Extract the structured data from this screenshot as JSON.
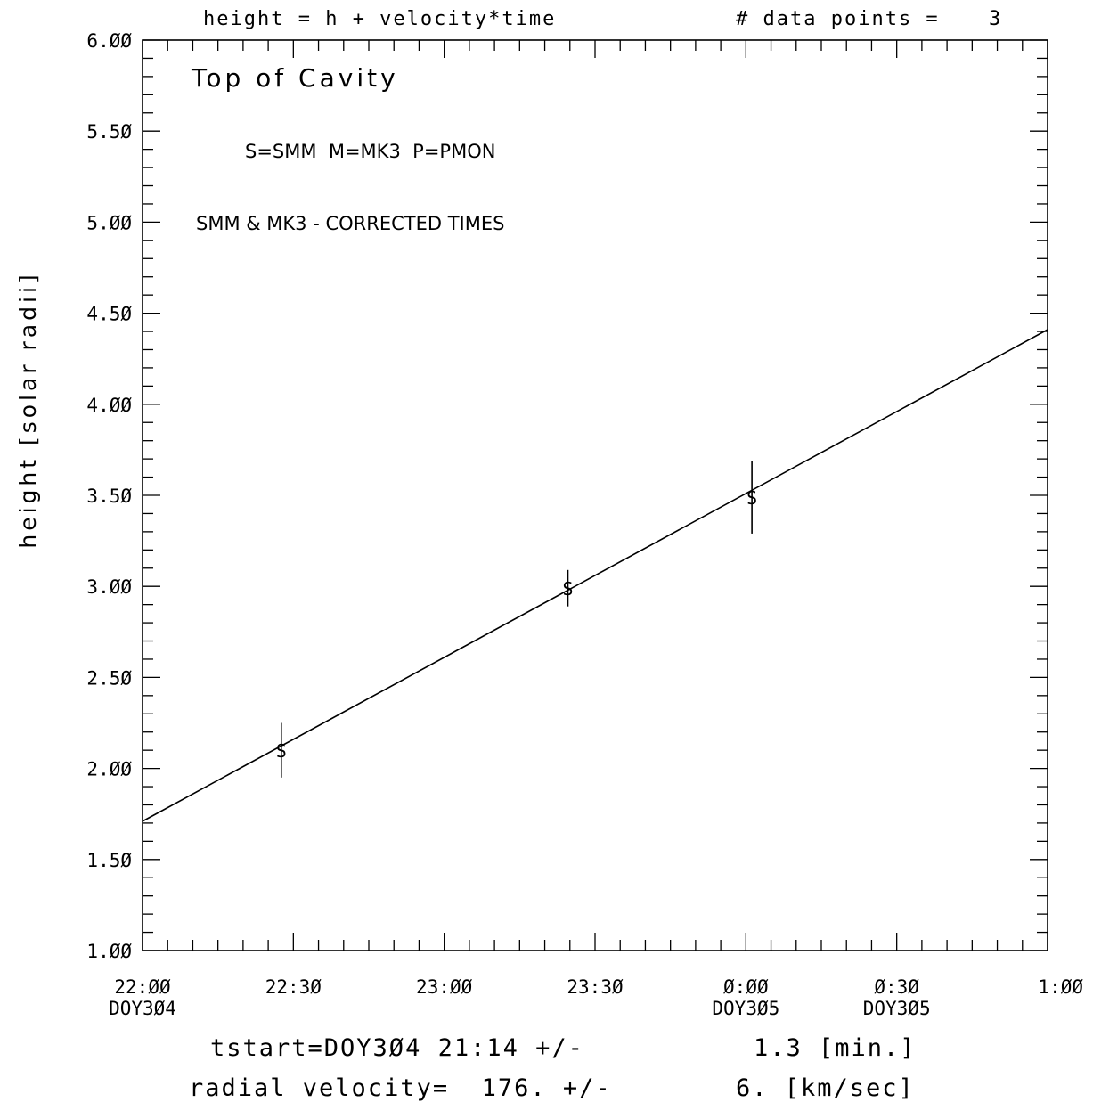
{
  "header": {
    "formula": "height = h + velocity*time",
    "points_label": "# data points =",
    "points_value": "3"
  },
  "chart_data": {
    "type": "scatter",
    "title": "Top of Cavity",
    "ylabel": "height [solar radii]",
    "xlabel": "",
    "ylim": [
      1.0,
      6.0
    ],
    "xlim_hours": [
      22.0,
      25.0
    ],
    "y_ticks": [
      "1.ØØ",
      "1.5Ø",
      "2.ØØ",
      "2.5Ø",
      "3.ØØ",
      "3.5Ø",
      "4.ØØ",
      "4.5Ø",
      "5.ØØ",
      "5.5Ø",
      "6.ØØ"
    ],
    "x_ticks": [
      {
        "time": "22:ØØ",
        "day": "DOY3Ø4"
      },
      {
        "time": "22:3Ø",
        "day": ""
      },
      {
        "time": "23:ØØ",
        "day": ""
      },
      {
        "time": "23:3Ø",
        "day": ""
      },
      {
        "time": "Ø:ØØ",
        "day": "DOY3Ø5"
      },
      {
        "time": "Ø:3Ø",
        "day": "DOY3Ø5"
      },
      {
        "time": "1:ØØ",
        "day": ""
      }
    ],
    "points": [
      {
        "t_hours": 22.46,
        "height": 2.1,
        "err": 0.15,
        "marker": "S"
      },
      {
        "t_hours": 23.41,
        "height": 2.99,
        "err": 0.1,
        "marker": "S"
      },
      {
        "t_hours": 24.02,
        "height": 3.49,
        "err": 0.2,
        "marker": "S"
      }
    ],
    "fit": {
      "start": [
        22.0,
        1.71
      ],
      "end": [
        25.0,
        4.41
      ]
    },
    "annotations": {
      "legend": "S=SMM  M=MK3  P=PMON",
      "note": "SMM & MK3 - CORRECTED TIMES"
    }
  },
  "footer": {
    "tstart_label": "tstart=DOY3Ø4 21:14 +/-",
    "tstart_err": "1.3 [min.]",
    "velocity_label": "radial velocity=  176. +/-",
    "velocity_err": "6. [km/sec]"
  }
}
